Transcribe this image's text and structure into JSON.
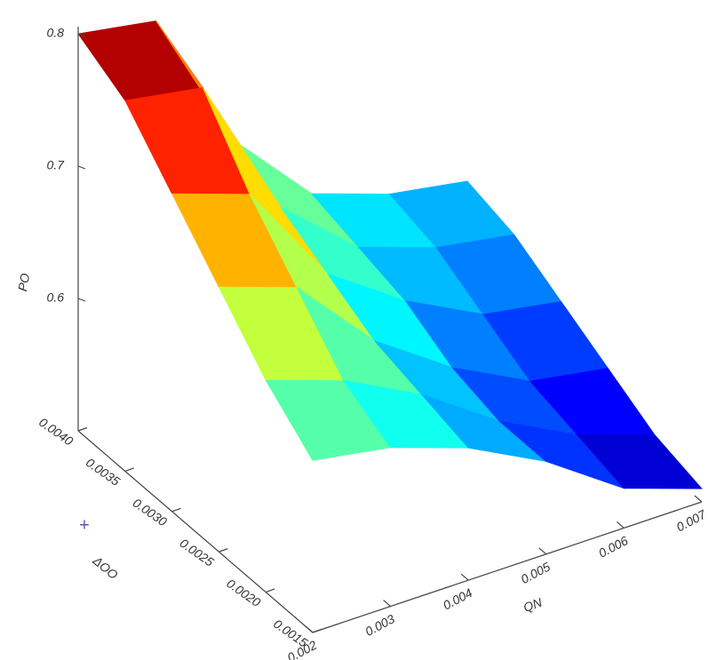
{
  "chart_data": {
    "type": "surface",
    "xlabel": "QN",
    "ylabel": "ΔOO",
    "zlabel": "PO",
    "annotation": "+",
    "x": [
      0.002,
      0.003,
      0.004,
      0.005,
      0.006,
      0.007
    ],
    "y": [
      0.0015,
      0.002,
      0.0025,
      0.003,
      0.0035,
      0.004
    ],
    "z": [
      [
        0.63,
        0.62,
        0.6,
        0.57,
        0.53,
        0.51
      ],
      [
        0.66,
        0.64,
        0.61,
        0.57,
        0.54,
        0.52
      ],
      [
        0.7,
        0.68,
        0.62,
        0.58,
        0.55,
        0.54
      ],
      [
        0.74,
        0.72,
        0.64,
        0.6,
        0.57,
        0.56
      ],
      [
        0.78,
        0.77,
        0.66,
        0.61,
        0.59,
        0.58
      ],
      [
        0.8,
        0.79,
        0.68,
        0.62,
        0.6,
        0.59
      ]
    ],
    "colormap": "jet",
    "xlim": [
      0.002,
      0.007
    ],
    "ylim": [
      0.0015,
      0.004
    ],
    "zlim": [
      0.5,
      0.8
    ],
    "xticks": [
      0.002,
      0.003,
      0.004,
      0.005,
      0.006,
      0.007
    ],
    "yticks": [
      {
        "value": 0.004,
        "label": "0.0040"
      },
      0.0035,
      {
        "value": 0.003,
        "label": "0.0030"
      },
      0.0025,
      {
        "value": 0.002,
        "label": "0.0020"
      },
      0.0015
    ],
    "zticks": [
      0.6,
      0.7,
      0.8
    ]
  }
}
